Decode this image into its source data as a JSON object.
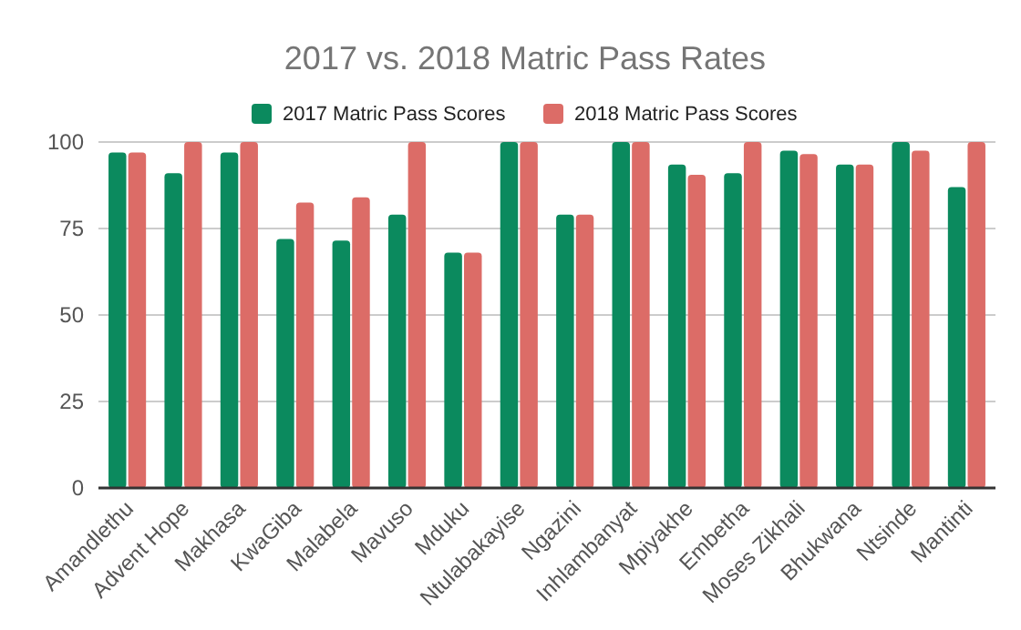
{
  "chart_data": {
    "type": "bar",
    "title": "2017 vs. 2018 Matric Pass Rates",
    "categories": [
      "Amandlethu",
      "Advent Hope",
      "Makhasa",
      "KwaGiba",
      "Malabela",
      "Mavuso",
      "Mduku",
      "Ntulabakayise",
      "Ngazini",
      "Inhlambanyat",
      "Mpiyakhe",
      "Embetha",
      "Moses Zikhali",
      "Bhukwana",
      "Ntsinde",
      "Mantinti"
    ],
    "series": [
      {
        "name": "2017 Matric Pass Scores",
        "color": "#0b8a5e",
        "values": [
          97,
          91,
          97,
          72,
          71.5,
          79,
          68,
          100,
          79,
          100,
          93.5,
          91,
          97.5,
          93.5,
          100,
          87
        ]
      },
      {
        "name": "2018 Matric Pass Scores",
        "color": "#dc6c67",
        "values": [
          97,
          100,
          100,
          82.5,
          84,
          100,
          68,
          100,
          79,
          100,
          90.5,
          100,
          96.5,
          93.5,
          97.5,
          100
        ]
      }
    ],
    "ylim": [
      0,
      100
    ],
    "yticks": [
      0,
      25,
      50,
      75,
      100
    ],
    "grid": "y",
    "legend": "top"
  }
}
